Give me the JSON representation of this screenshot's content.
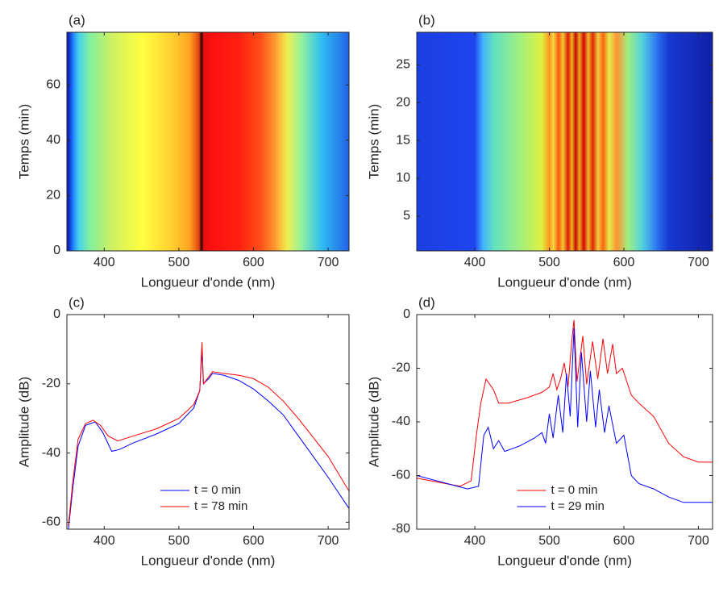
{
  "chart_data": [
    {
      "type": "heatmap",
      "title": "(a)",
      "x_label": "Longueur d'onde (nm)",
      "y_label": "Temps (min)",
      "xlim": [
        350,
        728
      ],
      "ylim": [
        0,
        79
      ],
      "xticks": [
        400,
        500,
        600,
        700
      ],
      "yticks": [
        0,
        20,
        40,
        60
      ],
      "x_stops": [
        350,
        353,
        358,
        365,
        380,
        410,
        450,
        490,
        515,
        527,
        530,
        533,
        545,
        580,
        610,
        630,
        645,
        665,
        690,
        728
      ],
      "colors": [
        "#0a1a9a",
        "#1030d0",
        "#2080ff",
        "#40d0f0",
        "#80f0a0",
        "#d0f060",
        "#ffff40",
        "#ffd030",
        "#ffa020",
        "#e04010",
        "#200000",
        "#e01010",
        "#ff1010",
        "#ff2010",
        "#ff5018",
        "#ffa030",
        "#f0f050",
        "#90f0a0",
        "#30c0f0",
        "#2060e8"
      ]
    },
    {
      "type": "heatmap",
      "title": "(b)",
      "x_label": "Longueur d'onde (nm)",
      "y_label": "Temps (min)",
      "xlim": [
        322,
        719
      ],
      "ylim": [
        0.4,
        29.3
      ],
      "xticks": [
        400,
        500,
        600,
        700
      ],
      "yticks": [
        5,
        10,
        15,
        20,
        25
      ],
      "x_stops": [
        322,
        400,
        410,
        425,
        460,
        490,
        500,
        505,
        512,
        518,
        525,
        530,
        535,
        540,
        546,
        552,
        558,
        565,
        572,
        580,
        590,
        605,
        625,
        645,
        660,
        719
      ],
      "colors": [
        "#1a3fe0",
        "#1e46f0",
        "#40b0ff",
        "#60e0c0",
        "#a0f080",
        "#e0f040",
        "#ff9020",
        "#f0e040",
        "#ff5010",
        "#f0d030",
        "#e01008",
        "#f0c020",
        "#c00000",
        "#f0b020",
        "#d00000",
        "#f0c030",
        "#e02000",
        "#f0d040",
        "#ff6010",
        "#e0f050",
        "#ff9030",
        "#a0f080",
        "#50d0e0",
        "#2a70f0",
        "#1838d0",
        "#1020a8"
      ]
    },
    {
      "type": "line",
      "title": "(c)",
      "x_label": "Longueur d'onde (nm)",
      "y_label": "Amplitude (dB)",
      "xlim": [
        350,
        728
      ],
      "ylim": [
        -62,
        0
      ],
      "xticks": [
        400,
        500,
        600,
        700
      ],
      "yticks": [
        -60,
        -40,
        -20,
        0
      ],
      "legend": "lower center",
      "series": [
        {
          "name": "t = 0 min",
          "color": "#0000ff",
          "x": [
            352,
            358,
            365,
            375,
            388,
            398,
            410,
            420,
            440,
            470,
            500,
            520,
            528,
            531,
            533,
            540,
            545,
            560,
            580,
            600,
            620,
            640,
            660,
            680,
            700,
            728
          ],
          "values": [
            -62,
            -50,
            -38,
            -32,
            -31,
            -34,
            -39.5,
            -39,
            -37,
            -34.5,
            -31.5,
            -27,
            -22,
            -10,
            -20,
            -18.5,
            -17,
            -17.5,
            -19,
            -21.5,
            -25,
            -29,
            -35,
            -41,
            -47,
            -56
          ]
        },
        {
          "name": "t = 78 min",
          "color": "#ff0000",
          "x": [
            352,
            358,
            365,
            375,
            385,
            395,
            405,
            418,
            440,
            470,
            500,
            520,
            528,
            531,
            533,
            540,
            545,
            560,
            580,
            600,
            620,
            640,
            660,
            680,
            700,
            728
          ],
          "values": [
            -61,
            -48,
            -36,
            -31.5,
            -30.5,
            -32,
            -35,
            -36.5,
            -35,
            -33,
            -30,
            -26,
            -22,
            -8,
            -20,
            -18,
            -16.5,
            -17,
            -17.5,
            -18.5,
            -21,
            -25,
            -30,
            -35.5,
            -41,
            -51
          ]
        }
      ]
    },
    {
      "type": "line",
      "title": "(d)",
      "x_label": "Longueur d'onde (nm)",
      "y_label": "Amplitude (dB)",
      "xlim": [
        322,
        719
      ],
      "ylim": [
        -80,
        0
      ],
      "xticks": [
        400,
        500,
        600,
        700
      ],
      "yticks": [
        -80,
        -60,
        -40,
        -20,
        0
      ],
      "legend": "lower center",
      "series": [
        {
          "name": "t = 0 min",
          "color": "#ff0000",
          "x": [
            322,
            380,
            395,
            402,
            408,
            415,
            425,
            432,
            445,
            470,
            490,
            500,
            505,
            510,
            515,
            520,
            525,
            530,
            533,
            537,
            545,
            550,
            558,
            565,
            572,
            578,
            585,
            590,
            598,
            610,
            620,
            640,
            660,
            680,
            700,
            719
          ],
          "values": [
            -61,
            -64,
            -62,
            -45,
            -33,
            -24,
            -28,
            -33,
            -33,
            -31,
            -29,
            -27,
            -22,
            -28,
            -24,
            -18,
            -27,
            -10,
            -2,
            -25,
            -8,
            -26,
            -10,
            -24,
            -9,
            -22,
            -11,
            -22,
            -20,
            -30,
            -33,
            -38,
            -48,
            -53,
            -55,
            -55
          ]
        },
        {
          "name": "t = 29 min",
          "color": "#0000ff",
          "x": [
            322,
            390,
            405,
            412,
            418,
            425,
            432,
            440,
            460,
            480,
            490,
            495,
            500,
            505,
            512,
            518,
            523,
            528,
            533,
            538,
            543,
            550,
            555,
            562,
            567,
            574,
            580,
            590,
            600,
            610,
            620,
            640,
            660,
            680,
            700,
            719
          ],
          "values": [
            -60,
            -65,
            -64,
            -45,
            -42,
            -50,
            -47,
            -51,
            -49,
            -46,
            -44,
            -48,
            -37,
            -46,
            -30,
            -44,
            -22,
            -38,
            -5,
            -42,
            -14,
            -40,
            -21,
            -42,
            -28,
            -44,
            -34,
            -48,
            -45,
            -60,
            -63,
            -65,
            -68,
            -70,
            -70,
            -70
          ]
        }
      ]
    }
  ]
}
